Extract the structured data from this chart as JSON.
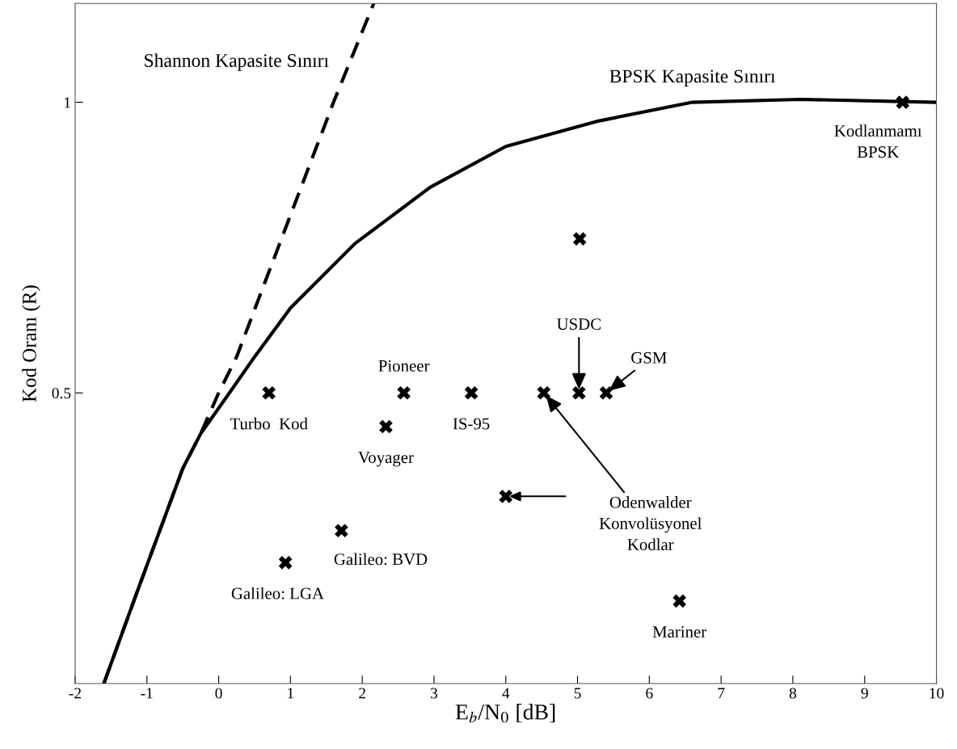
{
  "chart_data": {
    "type": "scatter",
    "xlabel": "E$_{b}$/N$_{0}$ [dB]",
    "ylabel": "Kod Oranı (R)",
    "xlim": [
      -2,
      10
    ],
    "xticks": [
      -2,
      -1,
      0,
      1,
      2,
      3,
      4,
      5,
      6,
      7,
      8,
      9,
      10
    ],
    "ylim": [
      0,
      1.17
    ],
    "yticks": [
      0.5,
      1
    ],
    "series": [
      {
        "name": "Shannon Kapasite Sınırı",
        "type": "line",
        "line_style": "dashed",
        "color": "#000000",
        "x": [
          -1.6,
          -1.1,
          -0.5,
          -0.25,
          0.0,
          0.25,
          0.85,
          1.6,
          2.16
        ],
        "values": [
          0,
          0.17,
          0.37,
          0.43,
          0.5,
          0.562,
          0.757,
          1.0,
          1.17
        ]
      },
      {
        "name": "BPSK Kapasite Sınırı",
        "type": "line",
        "line_style": "solid",
        "color": "#000000",
        "x": [
          -1.6,
          -1.1,
          -0.5,
          -0.25,
          0.15,
          0.5,
          1.0,
          1.9,
          2.95,
          4.0,
          5.3,
          6.6,
          8.1,
          10.0
        ],
        "values": [
          0,
          0.17,
          0.37,
          0.43,
          0.5,
          0.562,
          0.646,
          0.757,
          0.854,
          0.924,
          0.968,
          1.0,
          1.005,
          1.0
        ]
      },
      {
        "marker": "cross",
        "color": "#000000",
        "x": [
          0.7,
          2.58,
          2.33,
          3.52,
          4.53,
          5.02,
          5.4,
          4.0,
          1.71,
          0.93,
          6.42,
          9.53,
          5.03
        ],
        "values": [
          0.5,
          0.5,
          0.442,
          0.5,
          0.5,
          0.5,
          0.5,
          0.322,
          0.263,
          0.208,
          0.142,
          1.0,
          0.765
        ]
      }
    ],
    "annotations": [
      {
        "text": "Turbo  Kod",
        "x": 0.7,
        "y": 0.5
      },
      {
        "text": "Pioneer",
        "x": 2.58,
        "y": 0.5
      },
      {
        "text": "Voyager",
        "x": 2.33,
        "y": 0.442
      },
      {
        "text": "IS-95",
        "x": 3.52,
        "y": 0.5
      },
      {
        "text": "USDC",
        "x": 5.02,
        "y": 0.5
      },
      {
        "text": "GSM",
        "x": 5.4,
        "y": 0.5
      },
      {
        "text": "Odenwalder\nKonvolüsyonel\nKodlar",
        "x": 4.53,
        "y": 0.5
      },
      {
        "text": "Galileo: BVD",
        "x": 1.71,
        "y": 0.263
      },
      {
        "text": "Galileo: LGA",
        "x": 0.93,
        "y": 0.208
      },
      {
        "text": "Mariner",
        "x": 6.42,
        "y": 0.142
      },
      {
        "text": "Kodlanmamı\nBPSK",
        "x": 9.53,
        "y": 1.0
      }
    ]
  }
}
